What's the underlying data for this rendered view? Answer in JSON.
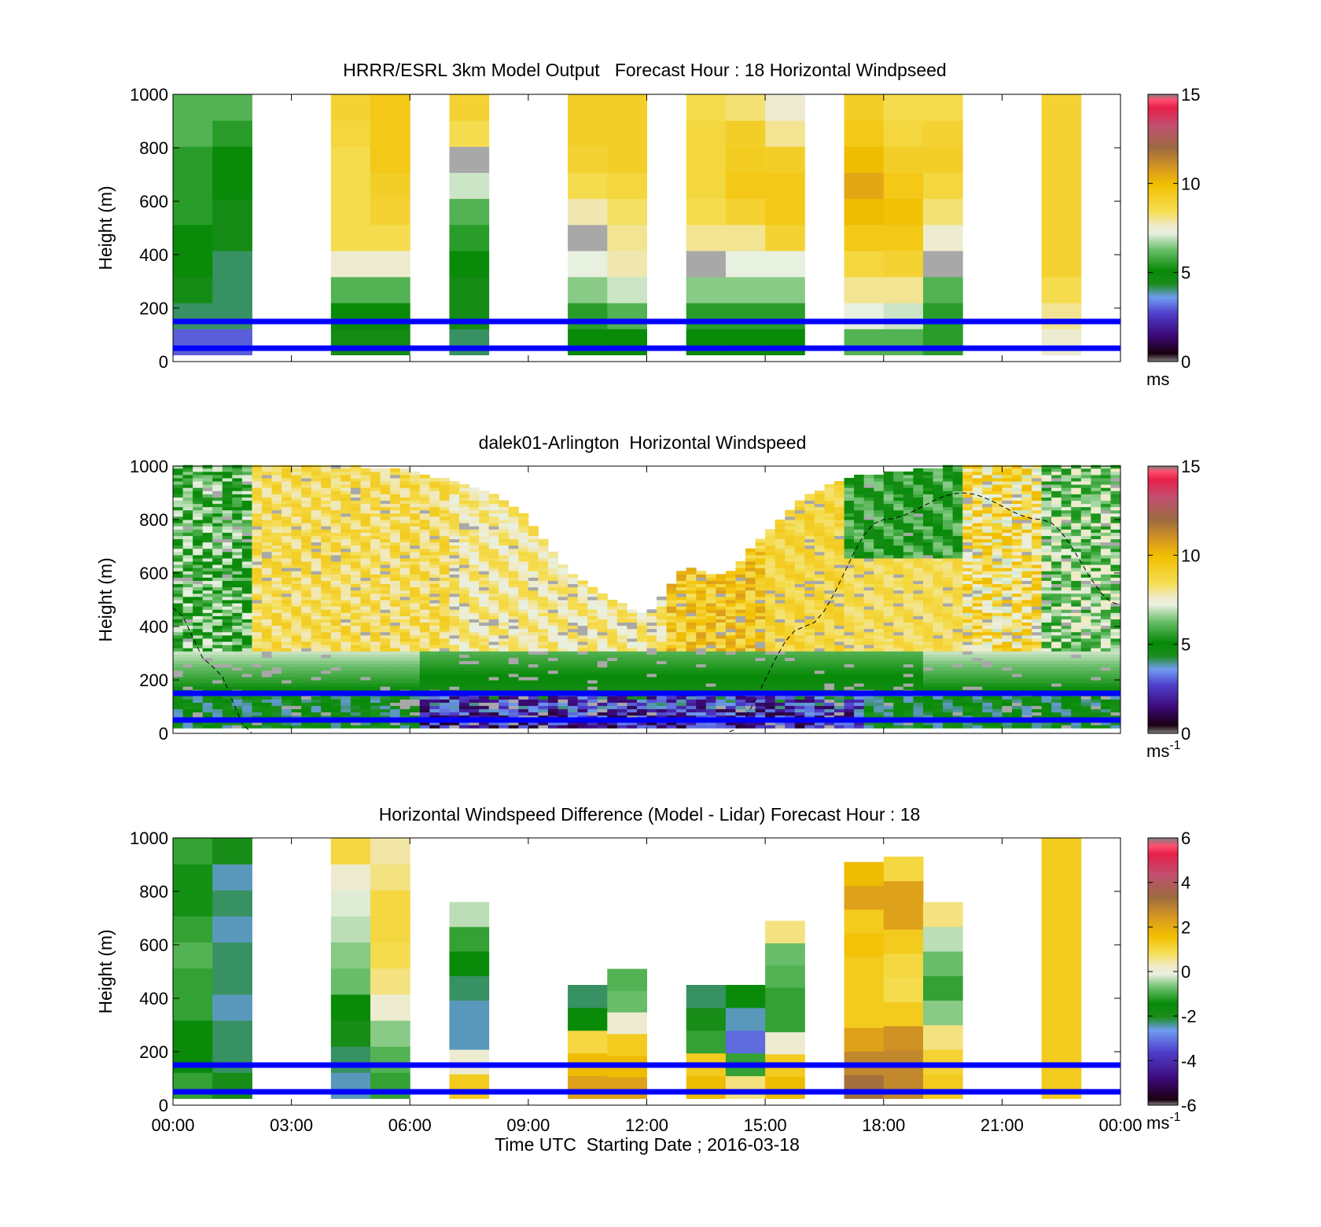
{
  "chart_data": [
    {
      "type": "heatmap",
      "title": "HRRR/ESRL 3km Model Output   Forecast Hour : 18 Horizontal Windpseed",
      "ylabel": "Height (m)",
      "ylim": [
        0,
        1000
      ],
      "yticks": [
        "0",
        "200",
        "400",
        "600",
        "800",
        "1000"
      ],
      "xlim": [
        0,
        24
      ],
      "colorbar": {
        "min": 0,
        "max": 15,
        "ticks": [
          "0",
          "5",
          "10",
          "15"
        ],
        "unit": "ms",
        "unit_sup": ""
      },
      "reference_lines": [
        50,
        150
      ],
      "columns": [
        {
          "t0": 0.0,
          "t1": 1.0,
          "top": 1000,
          "speeds": [
            3,
            4,
            4.5,
            5,
            5,
            5.5,
            5.5,
            5.5,
            6,
            6
          ]
        },
        {
          "t0": 1.0,
          "t1": 2.0,
          "top": 1000,
          "speeds": [
            3,
            4,
            4,
            4,
            4.5,
            4.5,
            5,
            5,
            5.5,
            6
          ]
        },
        {
          "t0": 4.0,
          "t1": 5.0,
          "top": 1000,
          "speeds": [
            4.5,
            5,
            6,
            7.5,
            8.5,
            8.5,
            8.5,
            8.5,
            8.8,
            9
          ]
        },
        {
          "t0": 5.0,
          "t1": 6.0,
          "top": 1000,
          "speeds": [
            4.5,
            5,
            6,
            7.5,
            8.5,
            9,
            9.2,
            9.5,
            9.5,
            9.5
          ]
        },
        {
          "t0": 7.0,
          "t1": 8.0,
          "top": 1000,
          "speeds": [
            4,
            4.5,
            4.5,
            5,
            5.5,
            6,
            7,
            -1,
            8.5,
            9
          ]
        },
        {
          "t0": 10.0,
          "t1": 11.0,
          "top": 1000,
          "speeds": [
            5,
            5.5,
            6.5,
            7.2,
            -1,
            7.8,
            8.5,
            9,
            9.2,
            9.2
          ]
        },
        {
          "t0": 11.0,
          "t1": 12.0,
          "top": 1000,
          "speeds": [
            5,
            6,
            7,
            7.8,
            8,
            8.3,
            8.8,
            9.2,
            9.2,
            9.2
          ]
        },
        {
          "t0": 13.0,
          "t1": 14.0,
          "top": 1000,
          "speeds": [
            5,
            5.5,
            6.5,
            -1,
            8,
            8.5,
            8.8,
            8.8,
            8.8,
            8.5
          ]
        },
        {
          "t0": 14.0,
          "t1": 15.0,
          "top": 1000,
          "speeds": [
            5,
            5.5,
            6.5,
            7.2,
            8,
            9,
            9.5,
            9.3,
            9.2,
            8.2
          ]
        },
        {
          "t0": 15.0,
          "t1": 16.0,
          "top": 1000,
          "speeds": [
            5,
            5.5,
            6.5,
            7.2,
            9,
            9.5,
            9.5,
            9.2,
            8,
            7.5
          ]
        },
        {
          "t0": 17.0,
          "t1": 18.0,
          "top": 1000,
          "speeds": [
            6,
            7.2,
            8,
            8.8,
            9.5,
            10,
            10.5,
            10,
            9.5,
            9.2
          ]
        },
        {
          "t0": 18.0,
          "t1": 19.0,
          "top": 1000,
          "speeds": [
            6,
            7,
            8,
            9,
            9.5,
            9.8,
            9.5,
            9.2,
            8.8,
            8.5
          ]
        },
        {
          "t0": 19.0,
          "t1": 20.0,
          "top": 1000,
          "speeds": [
            5.5,
            5.5,
            6,
            -1,
            7.5,
            8.2,
            8.8,
            9.2,
            9,
            8.5
          ]
        },
        {
          "t0": 22.0,
          "t1": 23.0,
          "top": 1000,
          "speeds": [
            7.5,
            8,
            8.5,
            9,
            9,
            9,
            9,
            9,
            9,
            9
          ]
        }
      ]
    },
    {
      "type": "heatmap",
      "title": "dalek01-Arlington  Horizontal Windspeed",
      "ylabel": "Height (m)",
      "ylim": [
        0,
        1000
      ],
      "yticks": [
        "0",
        "200",
        "400",
        "600",
        "800",
        "1000"
      ],
      "xlim": [
        0,
        24
      ],
      "colorbar": {
        "min": 0,
        "max": 15,
        "ticks": [
          "0",
          "5",
          "10",
          "15"
        ],
        "unit": "ms",
        "unit_sup": "-1"
      },
      "reference_lines": [
        50,
        150
      ],
      "data_top_profile": [
        [
          0,
          1000
        ],
        [
          2,
          1000
        ],
        [
          4,
          1000
        ],
        [
          6,
          980
        ],
        [
          8,
          900
        ],
        [
          9,
          800
        ],
        [
          10,
          600
        ],
        [
          11,
          500
        ],
        [
          12,
          440
        ],
        [
          13,
          620
        ],
        [
          14,
          580
        ],
        [
          15,
          740
        ],
        [
          16,
          880
        ],
        [
          17,
          950
        ],
        [
          18,
          970
        ],
        [
          20,
          1000
        ],
        [
          22,
          1000
        ],
        [
          24,
          1000
        ]
      ],
      "sun_curve": [
        [
          0,
          470
        ],
        [
          1,
          250
        ],
        [
          2,
          0
        ],
        [
          14,
          0
        ],
        [
          16,
          400
        ],
        [
          18,
          800
        ],
        [
          20,
          900
        ],
        [
          22,
          800
        ],
        [
          24,
          480
        ]
      ]
    },
    {
      "type": "heatmap",
      "title": "Horizontal Windspeed Difference (Model - Lidar) Forecast Hour : 18",
      "xlabel": "Time UTC  Starting Date ; 2016-03-18",
      "ylabel": "Height (m)",
      "ylim": [
        0,
        1000
      ],
      "yticks": [
        "0",
        "200",
        "400",
        "600",
        "800",
        "1000"
      ],
      "xlim": [
        0,
        24
      ],
      "xticks": [
        "00:00",
        "03:00",
        "06:00",
        "09:00",
        "12:00",
        "15:00",
        "18:00",
        "21:00",
        "00:00"
      ],
      "colorbar": {
        "min": -6,
        "max": 6,
        "ticks": [
          "-6",
          "-4",
          "-2",
          "0",
          "2",
          "4",
          "6"
        ],
        "unit": "ms",
        "unit_sup": "-1"
      },
      "reference_lines": [
        50,
        150
      ],
      "columns": [
        {
          "t0": 0.0,
          "t1": 1.0,
          "top": 1000,
          "diffs": [
            -1.5,
            -2,
            -2,
            -1.5,
            -1.5,
            -1.2,
            -1.5,
            -1.8,
            -1.8,
            -1.5
          ]
        },
        {
          "t0": 1.0,
          "t1": 2.0,
          "top": 1000,
          "diffs": [
            -2.5,
            -2.8,
            -2.8,
            -3,
            -2.8,
            -2.8,
            -3,
            -2.8,
            -3,
            -2.5
          ]
        },
        {
          "t0": 4.0,
          "t1": 5.0,
          "top": 1000,
          "diffs": [
            -3,
            -2.8,
            -2.5,
            -2,
            -1,
            -0.8,
            -0.5,
            -0.3,
            0,
            1
          ]
        },
        {
          "t0": 5.0,
          "t1": 6.0,
          "top": 1000,
          "diffs": [
            -1.5,
            -1.2,
            -0.8,
            0,
            0.5,
            0.8,
            1,
            1,
            0.5,
            0.3
          ]
        },
        {
          "t0": 7.0,
          "t1": 8.0,
          "top": 760,
          "diffs": [
            1.5,
            0,
            -3,
            -3,
            -2.8,
            -2,
            -1.5,
            -0.5
          ]
        },
        {
          "t0": 10.0,
          "t1": 11.0,
          "top": 450,
          "diffs": [
            2.5,
            2,
            1,
            -2,
            -2.8
          ]
        },
        {
          "t0": 11.0,
          "t1": 12.0,
          "top": 510,
          "diffs": [
            2.5,
            2,
            1.5,
            0,
            -1,
            -1.2
          ]
        },
        {
          "t0": 13.0,
          "t1": 14.0,
          "top": 450,
          "diffs": [
            2,
            1.5,
            -1.5,
            -2.5,
            -2.8
          ]
        },
        {
          "t0": 14.0,
          "t1": 15.0,
          "top": 450,
          "diffs": [
            0.5,
            -1.5,
            -3.5,
            -3,
            -2
          ]
        },
        {
          "t0": 15.0,
          "t1": 16.0,
          "top": 690,
          "diffs": [
            2,
            1.5,
            0,
            -1.5,
            -1.5,
            -1.2,
            -1,
            0.5
          ]
        },
        {
          "t0": 17.0,
          "t1": 18.0,
          "top": 910,
          "diffs": [
            3.5,
            3,
            2.5,
            1.5,
            1.5,
            1.5,
            1.8,
            1.5,
            2.5,
            2
          ]
        },
        {
          "t0": 18.0,
          "t1": 19.0,
          "top": 930,
          "diffs": [
            3,
            3,
            2.8,
            1.5,
            0.8,
            1,
            1.5,
            2.5,
            2.5,
            1
          ]
        },
        {
          "t0": 19.0,
          "t1": 20.0,
          "top": 760,
          "diffs": [
            1.5,
            1.2,
            0.5,
            -0.8,
            -1.5,
            -1,
            -0.5,
            0.5
          ]
        },
        {
          "t0": 22.0,
          "t1": 23.0,
          "top": 1000,
          "diffs": [
            1.5,
            1.5,
            1.5,
            1.5,
            1.5,
            1.5,
            1.5,
            1.5,
            1.5,
            1.5
          ]
        }
      ]
    }
  ]
}
